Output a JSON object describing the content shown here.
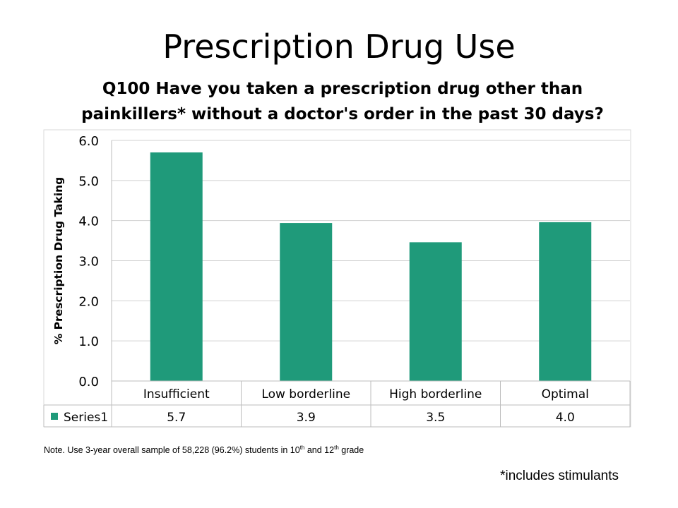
{
  "slide": {
    "title": "Prescription Drug Use"
  },
  "note": {
    "prefix": "Note. Use 3-year overall sample of 58,228 (96.2%) students in 10",
    "sup1": "th",
    "mid": " and 12",
    "sup2": "th",
    "suffix": " grade"
  },
  "footnote": "*includes stimulants",
  "colors": {
    "bar": "#1f9a7a",
    "grid": "#d0d0d0",
    "axis": "#bdbdbd"
  },
  "chart_data": {
    "type": "bar",
    "title": "Q100 Have you taken a prescription drug other than painkillers* without a doctor's order in the past 30 days?",
    "title_lines": [
      "Q100 Have you taken a prescription drug other than",
      "painkillers* without a doctor's order in the past 30 days?"
    ],
    "categories": [
      "Insufficient",
      "Low borderline",
      "High borderline",
      "Optimal"
    ],
    "series": [
      {
        "name": "Series1",
        "values": [
          5.7,
          3.94,
          3.46,
          3.96
        ],
        "value_labels": [
          "5.7",
          "3.9",
          "3.5",
          "4.0"
        ]
      }
    ],
    "ylabel": "% Prescription Drug Taking",
    "ylim": [
      0,
      6
    ],
    "yticks": [
      "0.0",
      "1.0",
      "2.0",
      "3.0",
      "4.0",
      "5.0",
      "6.0"
    ],
    "grid": true,
    "legend": "data-table",
    "data_table": true
  }
}
